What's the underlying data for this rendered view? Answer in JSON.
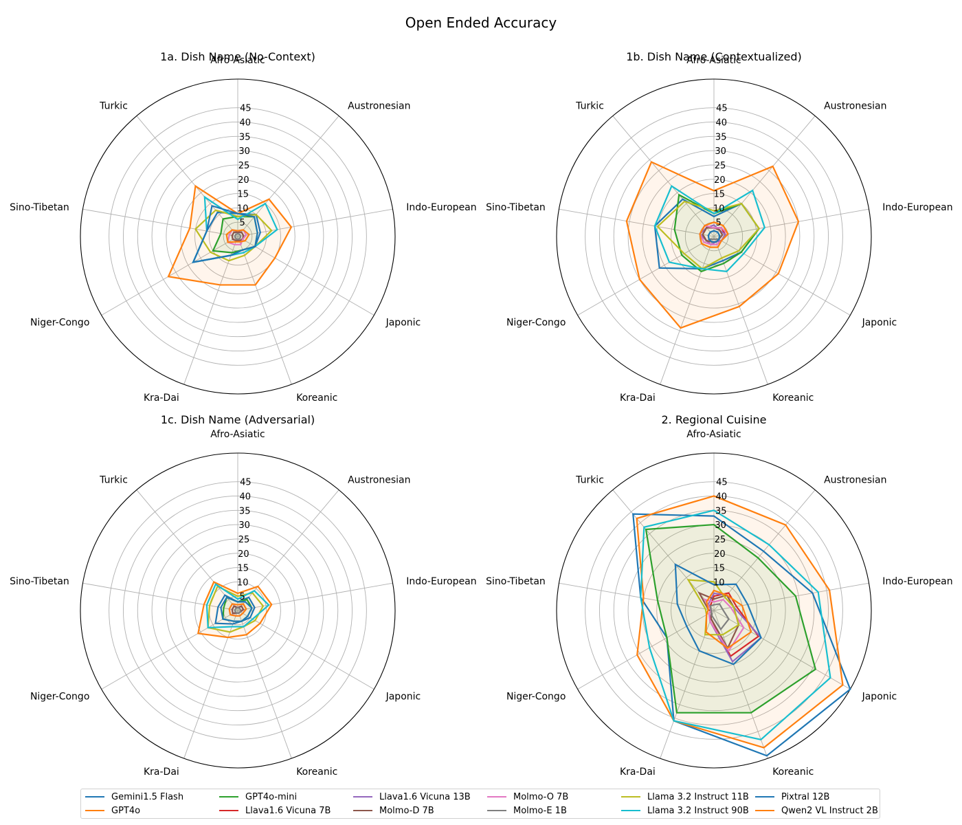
{
  "figure": {
    "title": "Open Ended Accuracy"
  },
  "chart_data": [
    {
      "type": "radar",
      "title": "1a. Dish Name (No-Context)",
      "categories": [
        "Afro-Asiatic",
        "Austronesian",
        "Indo-European",
        "Japonic",
        "Koreanic",
        "Kra-Dai",
        "Niger-Congo",
        "Sino-Tibetan",
        "Turkic"
      ],
      "radial_ticks": [
        5,
        10,
        15,
        20,
        25,
        30,
        35,
        40,
        45
      ],
      "rlim": [
        0,
        55
      ],
      "grid": true,
      "series": [
        {
          "name": "Gemini1.5 Flash",
          "values": [
            8,
            10,
            8,
            7,
            5,
            7,
            18,
            11,
            11
          ]
        },
        {
          "name": "GPT4o",
          "values": [
            8,
            17,
            19,
            15,
            18,
            18,
            28,
            17,
            23
          ]
        },
        {
          "name": "GPT4o-mini",
          "values": [
            7,
            9,
            7,
            7,
            5,
            6,
            10,
            6,
            8
          ]
        },
        {
          "name": "Llava1.6 Vicuna 7B",
          "values": [
            1.5,
            2,
            2,
            2,
            1.5,
            1.5,
            2,
            2,
            2
          ]
        },
        {
          "name": "Llava1.6 Vicuna 13B",
          "values": [
            1.5,
            2,
            2,
            2,
            1.5,
            1.5,
            2,
            2,
            2
          ]
        },
        {
          "name": "Molmo-D 7B",
          "values": [
            1.5,
            2,
            2,
            2,
            1.5,
            1.5,
            2,
            2,
            2
          ]
        },
        {
          "name": "Molmo-O 7B",
          "values": [
            2,
            3,
            3,
            2,
            3,
            3,
            4,
            3,
            3
          ]
        },
        {
          "name": "Molmo-E 1B",
          "values": [
            1,
            1,
            1,
            1,
            1,
            1,
            1,
            1,
            1
          ]
        },
        {
          "name": "Llama 3.2 Instruct 11B",
          "values": [
            7,
            10,
            12,
            7,
            7,
            9,
            11,
            15,
            12
          ]
        },
        {
          "name": "Llama 3.2 Instruct 90B",
          "values": [
            6,
            15,
            14,
            7,
            6,
            7,
            18,
            11,
            18
          ]
        },
        {
          "name": "Pixtral 12B",
          "values": [
            8,
            9,
            7,
            7,
            5,
            7,
            18,
            11,
            14
          ]
        },
        {
          "name": "Qwen2 VL Instruct 2B",
          "values": [
            2,
            3,
            4,
            3,
            2,
            2,
            4,
            4,
            3
          ]
        }
      ]
    },
    {
      "type": "radar",
      "title": "1b. Dish Name (Contextualized)",
      "categories": [
        "Afro-Asiatic",
        "Austronesian",
        "Indo-European",
        "Japonic",
        "Koreanic",
        "Kra-Dai",
        "Niger-Congo",
        "Sino-Tibetan",
        "Turkic"
      ],
      "radial_ticks": [
        5,
        10,
        15,
        20,
        25,
        30,
        35,
        40,
        45
      ],
      "rlim": [
        0,
        55
      ],
      "grid": true,
      "series": [
        {
          "name": "Gemini1.5 Flash",
          "values": [
            7,
            15,
            16,
            11,
            9,
            12,
            22,
            21,
            17
          ]
        },
        {
          "name": "GPT4o",
          "values": [
            16,
            32,
            30,
            26,
            26,
            34,
            30,
            31,
            34
          ]
        },
        {
          "name": "GPT4o-mini",
          "values": [
            8,
            15,
            16,
            11,
            10,
            13,
            13,
            14,
            19
          ]
        },
        {
          "name": "Llava1.6 Vicuna 7B",
          "values": [
            3,
            4,
            4,
            3,
            2,
            2,
            3,
            4,
            4
          ]
        },
        {
          "name": "Llava1.6 Vicuna 13B",
          "values": [
            4,
            3,
            4,
            3,
            2,
            3,
            3,
            5,
            4
          ]
        },
        {
          "name": "Molmo-D 7B",
          "values": [
            3,
            3,
            3,
            2,
            2,
            2,
            3,
            4,
            4
          ]
        },
        {
          "name": "Molmo-O 7B",
          "values": [
            3,
            4,
            5,
            3,
            3,
            3,
            4,
            5,
            5
          ]
        },
        {
          "name": "Molmo-E 1B",
          "values": [
            2,
            2,
            2,
            2,
            1,
            1,
            2,
            2,
            2
          ]
        },
        {
          "name": "Llama 3.2 Instruct 11B",
          "values": [
            9,
            15,
            16,
            10,
            8,
            12,
            12,
            20,
            16
          ]
        },
        {
          "name": "Llama 3.2 Instruct 90B",
          "values": [
            8,
            21,
            18,
            12,
            13,
            12,
            18,
            21,
            23
          ]
        },
        {
          "name": "Pixtral 12B",
          "values": [
            2,
            2,
            2,
            2,
            2,
            2,
            2,
            2,
            2
          ]
        },
        {
          "name": "Qwen2 VL Instruct 2B",
          "values": [
            5,
            5,
            5,
            3,
            4,
            4,
            5,
            5,
            5
          ]
        }
      ]
    },
    {
      "type": "radar",
      "title": "1c. Dish Name (Adversarial)",
      "categories": [
        "Afro-Asiatic",
        "Austronesian",
        "Indo-European",
        "Japonic",
        "Koreanic",
        "Kra-Dai",
        "Niger-Congo",
        "Sino-Tibetan",
        "Turkic"
      ],
      "radial_ticks": [
        5,
        10,
        15,
        20,
        25,
        30,
        35,
        40,
        45
      ],
      "rlim": [
        0,
        55
      ],
      "grid": true,
      "series": [
        {
          "name": "Gemini1.5 Flash",
          "values": [
            3,
            6,
            6,
            5,
            4,
            5,
            9,
            7,
            7
          ]
        },
        {
          "name": "GPT4o",
          "values": [
            6,
            11,
            12,
            9,
            9,
            10,
            16,
            12,
            13
          ]
        },
        {
          "name": "GPT4o-mini",
          "values": [
            3,
            5,
            5,
            4,
            4,
            4,
            6,
            5,
            6
          ]
        },
        {
          "name": "Llava1.6 Vicuna 7B",
          "values": [
            1,
            2,
            2,
            1,
            1,
            1,
            2,
            2,
            2
          ]
        },
        {
          "name": "Llava1.6 Vicuna 13B",
          "values": [
            1,
            2,
            2,
            1,
            1,
            1,
            2,
            2,
            2
          ]
        },
        {
          "name": "Molmo-D 7B",
          "values": [
            1,
            2,
            2,
            1,
            1,
            1,
            2,
            2,
            2
          ]
        },
        {
          "name": "Molmo-O 7B",
          "values": [
            2,
            3,
            3,
            2,
            2,
            2,
            3,
            3,
            3
          ]
        },
        {
          "name": "Molmo-E 1B",
          "values": [
            1,
            1,
            1,
            1,
            1,
            1,
            1,
            1,
            1
          ]
        },
        {
          "name": "Llama 3.2 Instruct 11B",
          "values": [
            5,
            8,
            9,
            7,
            6,
            8,
            12,
            10,
            11
          ]
        },
        {
          "name": "Llama 3.2 Instruct 90B",
          "values": [
            4,
            9,
            11,
            6,
            6,
            6,
            12,
            11,
            12
          ]
        },
        {
          "name": "Pixtral 12B",
          "values": [
            3,
            4,
            5,
            4,
            4,
            4,
            6,
            6,
            6
          ]
        },
        {
          "name": "Qwen2 VL Instruct 2B",
          "values": [
            2,
            3,
            3,
            2,
            2,
            2,
            3,
            3,
            3
          ]
        }
      ]
    },
    {
      "type": "radar",
      "title": "2. Regional Cuisine",
      "categories": [
        "Afro-Asiatic",
        "Austronesian",
        "Indo-European",
        "Japonic",
        "Koreanic",
        "Kra-Dai",
        "Niger-Congo",
        "Sino-Tibetan",
        "Turkic"
      ],
      "radial_ticks": [
        10,
        15,
        20,
        25,
        30,
        35,
        40,
        45
      ],
      "rlim": [
        0,
        55
      ],
      "grid": true,
      "series": [
        {
          "name": "Gemini1.5 Flash",
          "values": [
            33,
            27,
            35,
            55,
            54,
            41,
            19,
            26,
            44
          ]
        },
        {
          "name": "GPT4o",
          "values": [
            40,
            39,
            41,
            52,
            51,
            41,
            31,
            25,
            42
          ]
        },
        {
          "name": "GPT4o-mini",
          "values": [
            30,
            24,
            29,
            41,
            38,
            38,
            19,
            20,
            37
          ]
        },
        {
          "name": "Llava1.6 Vicuna 7B",
          "values": [
            5,
            8,
            8,
            18,
            17,
            3,
            1,
            1,
            2
          ]
        },
        {
          "name": "Llava1.6 Vicuna 13B",
          "values": [
            6,
            7,
            7,
            19,
            19,
            4,
            1,
            1,
            3
          ]
        },
        {
          "name": "Molmo-D 7B",
          "values": [
            4,
            7,
            7,
            10,
            14,
            3,
            1,
            2,
            8
          ]
        },
        {
          "name": "Molmo-O 7B",
          "values": [
            3,
            5,
            6,
            12,
            15,
            4,
            2,
            1,
            5
          ]
        },
        {
          "name": "Molmo-E 1B",
          "values": [
            2,
            3,
            3,
            6,
            7,
            2,
            1,
            1,
            2
          ]
        },
        {
          "name": "Llama 3.2 Instruct 11B",
          "values": [
            10,
            6,
            7,
            10,
            9,
            9,
            3,
            3,
            14
          ]
        },
        {
          "name": "Llama 3.2 Instruct 90B",
          "values": [
            35,
            30,
            37,
            47,
            48,
            41,
            26,
            26,
            38
          ]
        },
        {
          "name": "Pixtral 12B",
          "values": [
            9,
            12,
            12,
            19,
            20,
            15,
            11,
            13,
            21
          ]
        },
        {
          "name": "Qwen2 VL Instruct 2B",
          "values": [
            7,
            7,
            10,
            15,
            14,
            8,
            3,
            2,
            4
          ]
        }
      ]
    }
  ],
  "legend": {
    "items": [
      {
        "label": "Gemini1.5 Flash",
        "color": "#1f77b4"
      },
      {
        "label": "GPT4o",
        "color": "#ff7f0e"
      },
      {
        "label": "GPT4o-mini",
        "color": "#2ca02c"
      },
      {
        "label": "Llava1.6 Vicuna 7B",
        "color": "#d62728"
      },
      {
        "label": "Llava1.6 Vicuna 13B",
        "color": "#9467bd"
      },
      {
        "label": "Molmo-D 7B",
        "color": "#8c564b"
      },
      {
        "label": "Molmo-O 7B",
        "color": "#e377c2"
      },
      {
        "label": "Molmo-E 1B",
        "color": "#7f7f7f"
      },
      {
        "label": "Llama 3.2 Instruct 11B",
        "color": "#bcbd22"
      },
      {
        "label": "Llama 3.2 Instruct 90B",
        "color": "#17becf"
      },
      {
        "label": "Pixtral 12B",
        "color": "#1f77b4"
      },
      {
        "label": "Qwen2 VL Instruct 2B",
        "color": "#ff7f0e"
      }
    ]
  },
  "colors": {
    "fill_primary": "#ff7f0e",
    "fill_secondary": "#2ca02c",
    "grid": "#b0b0b0",
    "outer_ring": "#000000"
  }
}
